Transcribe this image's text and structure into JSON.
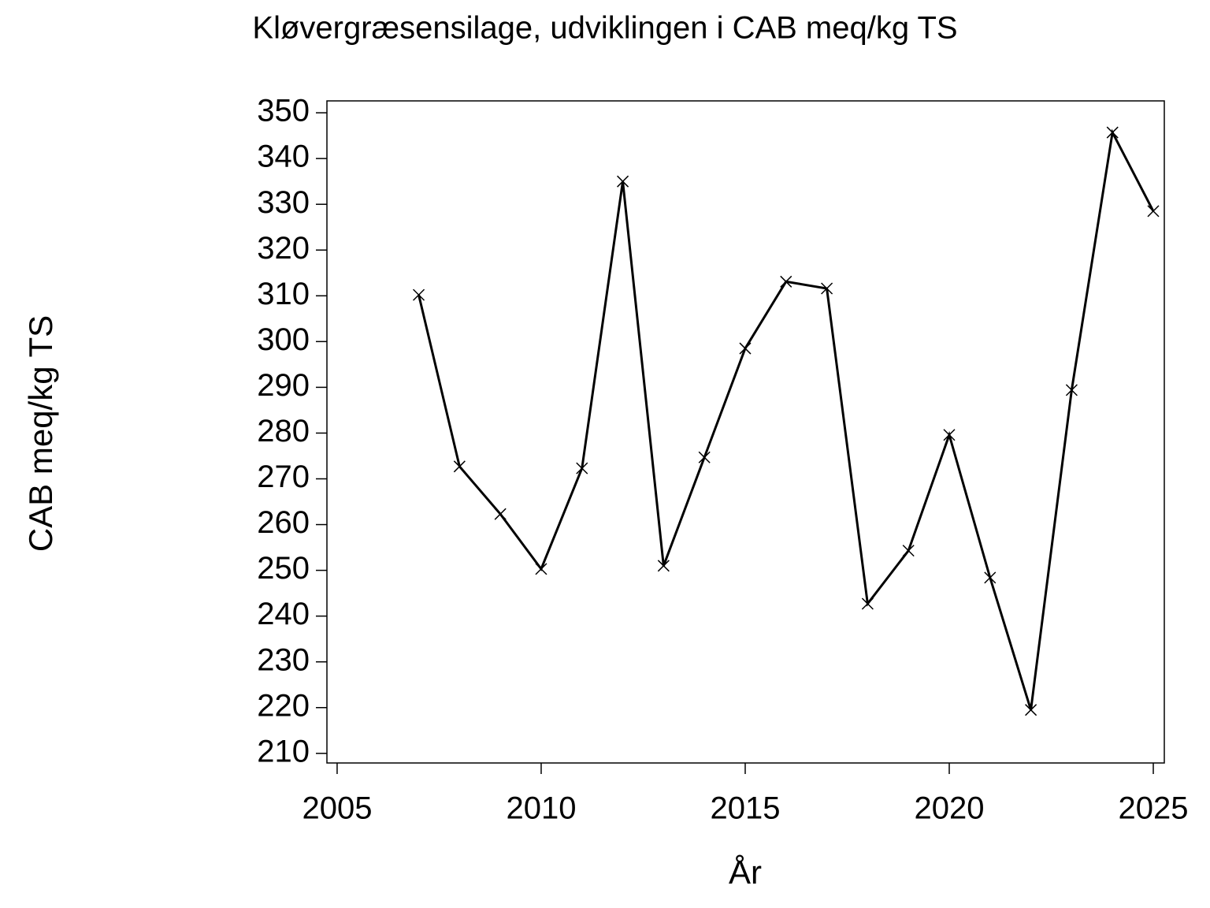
{
  "chart_data": {
    "type": "line",
    "title": "Kløvergræsensilage,  udviklingen  i  CAB  meq/kg  TS",
    "x_label": "År",
    "y_label": "CAB meq/kg TS",
    "x": [
      2007,
      2008,
      2009,
      2010,
      2011,
      2012,
      2013,
      2014,
      2015,
      2016,
      2017,
      2018,
      2019,
      2020,
      2021,
      2022,
      2023,
      2024,
      2025
    ],
    "series": [
      {
        "color": "#000000",
        "marker": "x",
        "values": [
          310.2,
          272.7,
          262.3,
          250.3,
          272.3,
          335,
          251,
          274.7,
          298.5,
          313.1,
          311.6,
          242.7,
          254.3,
          279.6,
          248.4,
          219.5,
          289.4,
          345.7,
          328.5
        ]
      }
    ],
    "xlim": [
      2004.75,
      2025.27
    ],
    "ylim": [
      207.9,
      352.6
    ],
    "xticks": [
      2005,
      2010,
      2015,
      2020,
      2025
    ],
    "yticks": [
      210,
      220,
      230,
      240,
      250,
      260,
      270,
      280,
      290,
      300,
      310,
      320,
      330,
      340,
      350
    ],
    "grid": false
  }
}
